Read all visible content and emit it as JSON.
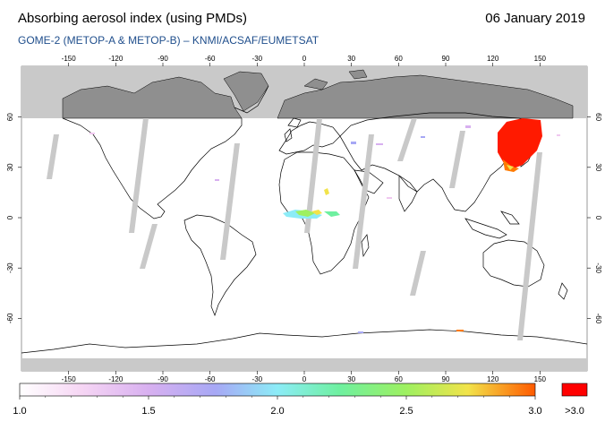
{
  "header": {
    "title": "Absorbing aerosol index (using PMDs)",
    "date": "06 January 2019",
    "subtitle": "GOME-2 (METOP-A & METOP-B)  –  KNMI/ACSAF/EUMETSAT"
  },
  "map": {
    "lon_ticks": [
      "-150",
      "-120",
      "-90",
      "-60",
      "-30",
      "0",
      "30",
      "60",
      "90",
      "120",
      "150"
    ],
    "lat_ticks": [
      "60",
      "30",
      "0",
      "-30",
      "-60"
    ],
    "colors": {
      "no_data": "#c9c9c9",
      "land_no_data": "#8f8f8f",
      "coastline": "#000000",
      "high_aerosol": "#ff1a00"
    }
  },
  "colorbar": {
    "labels": [
      "1.0",
      "1.5",
      "2.0",
      "2.5",
      "3.0"
    ],
    "overflow_label": ">3.0",
    "overflow_color": "#ff0000"
  }
}
